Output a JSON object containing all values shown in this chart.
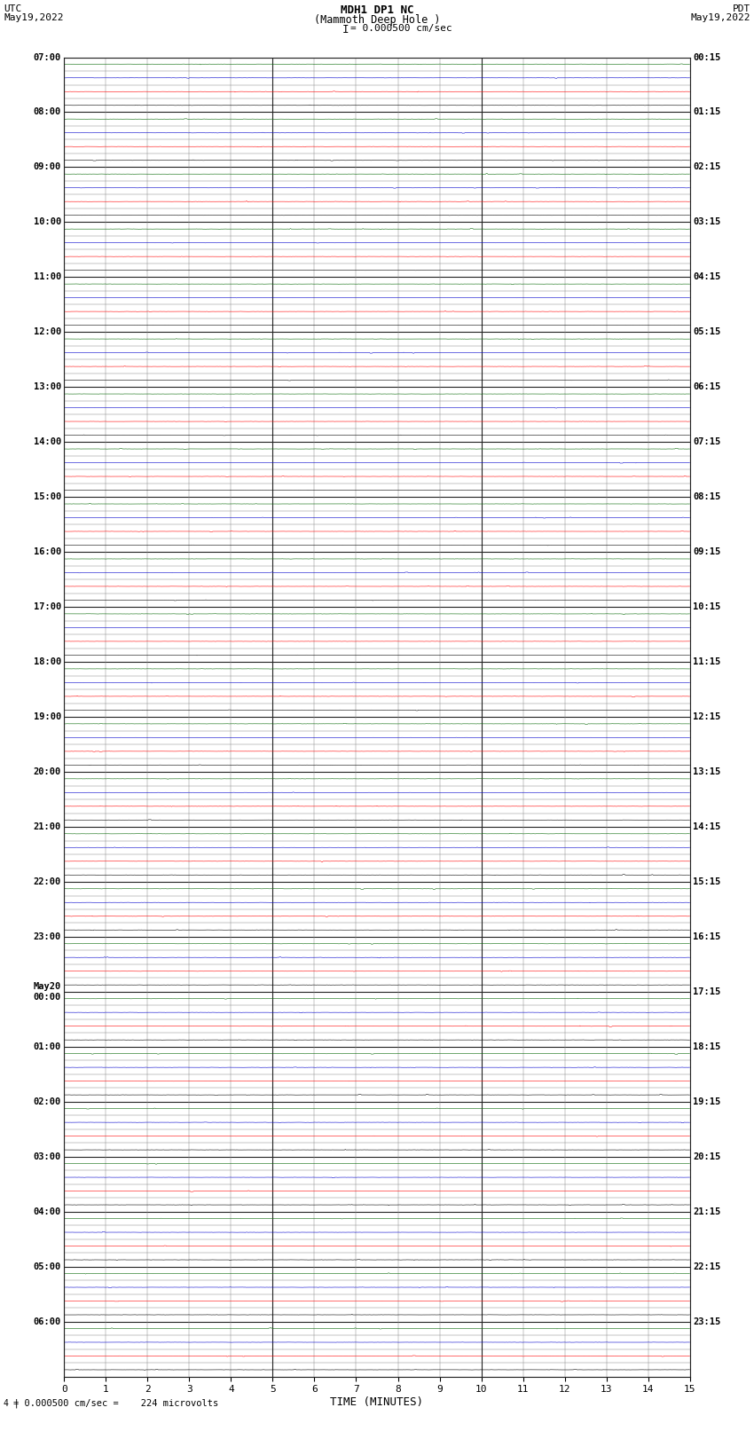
{
  "title_line1": "MDH1 DP1 NC",
  "title_line2": "(Mammoth Deep Hole )",
  "scale_label": "= 0.000500 cm/sec",
  "footer_label": "= 0.000500 cm/sec =    224 microvolts",
  "xlabel": "TIME (MINUTES)",
  "bg_color": "#ffffff",
  "grid_minor_color": "#888888",
  "grid_major_color": "#333333",
  "left_times": [
    "07:00",
    "",
    "",
    "",
    "08:00",
    "",
    "",
    "",
    "09:00",
    "",
    "",
    "",
    "10:00",
    "",
    "",
    "",
    "11:00",
    "",
    "",
    "",
    "12:00",
    "",
    "",
    "",
    "13:00",
    "",
    "",
    "",
    "14:00",
    "",
    "",
    "",
    "15:00",
    "",
    "",
    "",
    "16:00",
    "",
    "",
    "",
    "17:00",
    "",
    "",
    "",
    "18:00",
    "",
    "",
    "",
    "19:00",
    "",
    "",
    "",
    "20:00",
    "",
    "",
    "",
    "21:00",
    "",
    "",
    "",
    "22:00",
    "",
    "",
    "",
    "23:00",
    "",
    "",
    "",
    "May20",
    "00:00",
    "",
    "",
    "01:00",
    "",
    "",
    "",
    "02:00",
    "",
    "",
    "",
    "03:00",
    "",
    "",
    "",
    "04:00",
    "",
    "",
    "",
    "05:00",
    "",
    "",
    "",
    "06:00",
    "",
    "",
    ""
  ],
  "right_times": [
    "00:15",
    "",
    "",
    "",
    "01:15",
    "",
    "",
    "",
    "02:15",
    "",
    "",
    "",
    "03:15",
    "",
    "",
    "",
    "04:15",
    "",
    "",
    "",
    "05:15",
    "",
    "",
    "",
    "06:15",
    "",
    "",
    "",
    "07:15",
    "",
    "",
    "",
    "08:15",
    "",
    "",
    "",
    "09:15",
    "",
    "",
    "",
    "10:15",
    "",
    "",
    "",
    "11:15",
    "",
    "",
    "",
    "12:15",
    "",
    "",
    "",
    "13:15",
    "",
    "",
    "",
    "14:15",
    "",
    "",
    "",
    "15:15",
    "",
    "",
    "",
    "16:15",
    "",
    "",
    "",
    "17:15",
    "",
    "",
    "",
    "18:15",
    "",
    "",
    "",
    "19:15",
    "",
    "",
    "",
    "20:15",
    "",
    "",
    "",
    "21:15",
    "",
    "",
    "",
    "22:15",
    "",
    "",
    "",
    "23:15",
    "",
    "",
    ""
  ],
  "row_colors": [
    "#000000",
    "#ff0000",
    "#0000cc",
    "#006600",
    "#000000",
    "#ff0000",
    "#0000cc",
    "#006600",
    "#000000",
    "#ff0000",
    "#0000cc",
    "#006600",
    "#000000",
    "#ff0000",
    "#0000cc",
    "#006600",
    "#000000",
    "#ff0000",
    "#0000cc",
    "#006600",
    "#000000",
    "#ff0000",
    "#0000cc",
    "#006600",
    "#000000",
    "#ff0000",
    "#0000cc",
    "#006600",
    "#000000",
    "#ff0000",
    "#0000cc",
    "#006600",
    "#000000",
    "#ff0000",
    "#0000cc",
    "#006600",
    "#000000",
    "#ff0000",
    "#0000cc",
    "#006600",
    "#000000",
    "#ff0000",
    "#0000cc",
    "#006600",
    "#000000",
    "#ff0000",
    "#0000cc",
    "#006600",
    "#000000",
    "#ff0000",
    "#0000cc",
    "#006600",
    "#000000",
    "#ff0000",
    "#0000cc",
    "#006600",
    "#000000",
    "#ff0000",
    "#0000cc",
    "#006600",
    "#000000",
    "#ff0000",
    "#0000cc",
    "#006600",
    "#000000",
    "#ff0000",
    "#0000cc",
    "#006600",
    "#000000",
    "#ff0000",
    "#0000cc",
    "#006600",
    "#000000",
    "#ff0000",
    "#0000cc",
    "#006600",
    "#000000",
    "#ff0000",
    "#0000cc",
    "#006600",
    "#000000",
    "#ff0000",
    "#0000cc",
    "#006600",
    "#000000",
    "#ff0000",
    "#0000cc",
    "#006600",
    "#000000",
    "#ff0000",
    "#0000cc",
    "#006600",
    "#000000",
    "#ff0000",
    "#0000cc",
    "#006600"
  ],
  "n_rows": 96,
  "n_minutes": 15,
  "xmin": 0,
  "xmax": 15,
  "trace_amplitude": 0.006,
  "random_seed": 42
}
